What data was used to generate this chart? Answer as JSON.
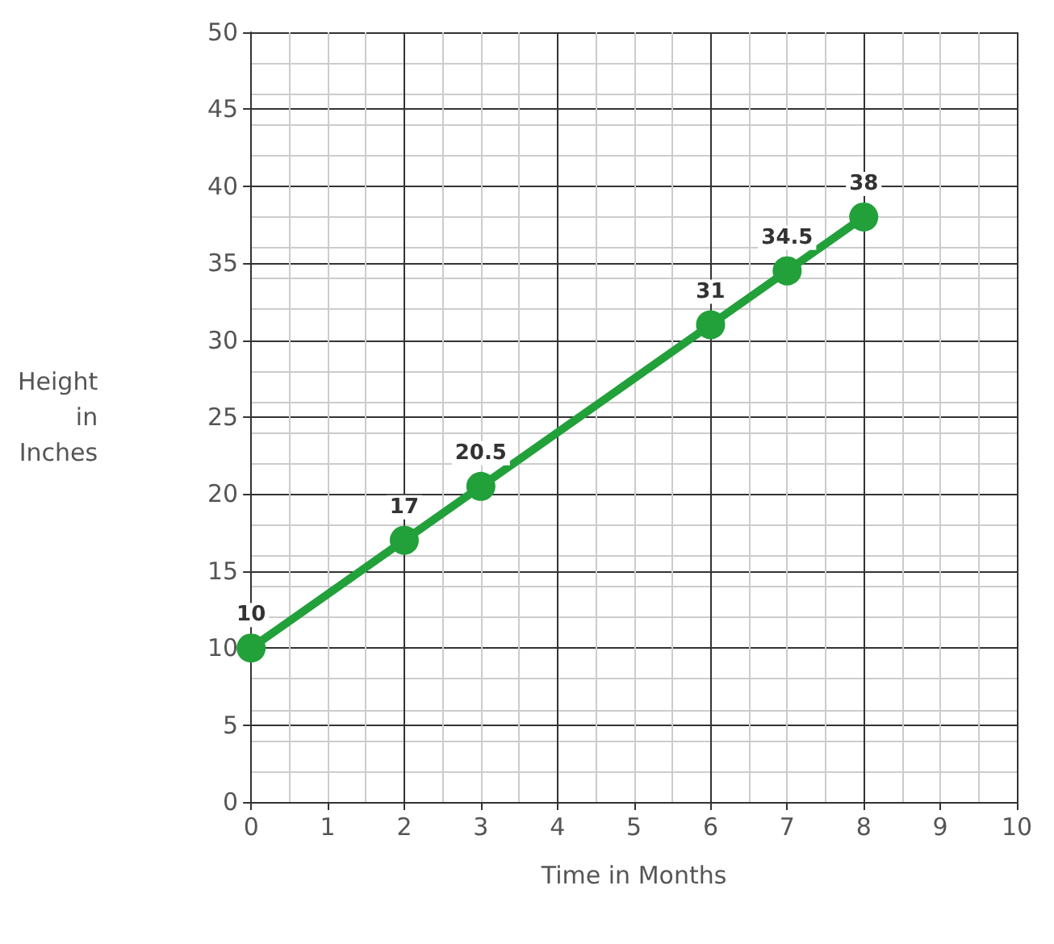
{
  "chart_data": {
    "type": "line",
    "xlabel": "Time in Months",
    "ylabel": "Height in Inches",
    "x": [
      0,
      2,
      3,
      6,
      7,
      8
    ],
    "series": [
      {
        "color": "#22a03a",
        "values": [
          10,
          17,
          20.5,
          31,
          34.5,
          38
        ]
      }
    ],
    "value_labels": [
      "10",
      "17",
      "20.5",
      "31",
      "34.5",
      "38"
    ],
    "xlim": [
      0,
      10
    ],
    "xticks": [
      0,
      1,
      2,
      3,
      4,
      5,
      6,
      7,
      8,
      9,
      10
    ],
    "ylim": [
      0,
      50
    ],
    "yticks": [
      0,
      5,
      10,
      15,
      20,
      25,
      30,
      35,
      40,
      45,
      50
    ],
    "grid": true,
    "marker": "circle",
    "line_style": "solid"
  }
}
